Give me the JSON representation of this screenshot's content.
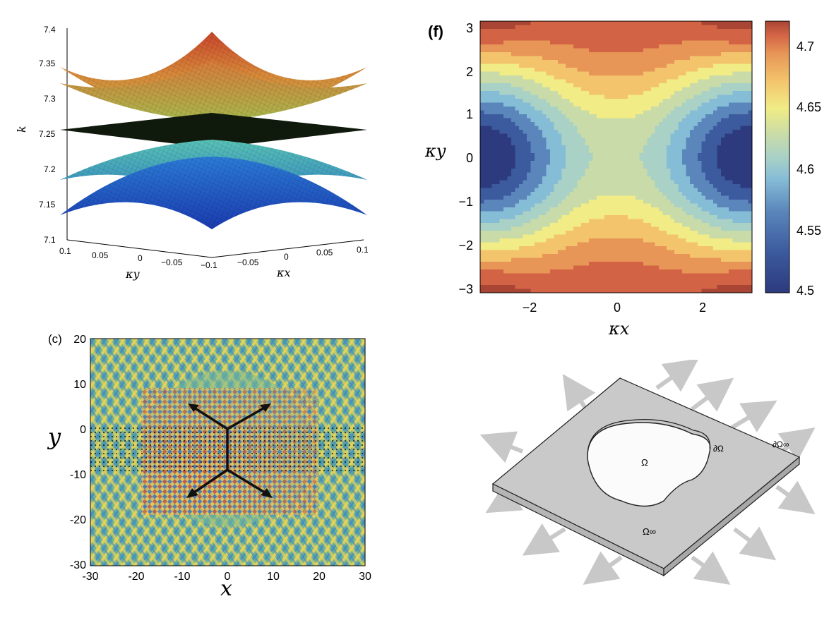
{
  "chart_data": [
    {
      "panel": "",
      "type": "surface",
      "zlabel": "k",
      "ylabel": "κy",
      "xlabel": "κx",
      "zlim": [
        7.1,
        7.4
      ],
      "z_ticks": [
        "7.1",
        "7.15",
        "7.2",
        "7.25",
        "7.3",
        "7.35",
        "7.4"
      ],
      "ky_ticks": [
        "0.1",
        "0.05",
        "0",
        "−0.05",
        "−0.1"
      ],
      "kx_ticks": [
        "−0.05",
        "0",
        "0.05",
        "0.1"
      ],
      "surfaces": [
        {
          "center_k": 7.33,
          "edge_k": 7.39,
          "colormap": "upper"
        },
        {
          "center_k": 7.3,
          "edge_k": 7.33,
          "colormap": "upper"
        },
        {
          "center_k": 7.255,
          "edge_k": 7.255,
          "colormap": "flat"
        },
        {
          "center_k": 7.21,
          "edge_k": 7.18,
          "colormap": "lower"
        },
        {
          "center_k": 7.18,
          "edge_k": 7.12,
          "colormap": "lower"
        }
      ]
    },
    {
      "panel": "(f)",
      "type": "heatmap",
      "xlabel": "κx",
      "ylabel": "κy",
      "xlim": [
        -3.14,
        3.14
      ],
      "ylim": [
        -3.14,
        3.14
      ],
      "x_ticks": [
        "−2",
        "0",
        "2"
      ],
      "y_ticks": [
        "3",
        "2",
        "1",
        "0",
        "−1",
        "−2",
        "−3"
      ],
      "colorbar_ticks": [
        "4.7",
        "4.65",
        "4.6",
        "4.55",
        "4.5"
      ],
      "colorbar_range": [
        4.49,
        4.72
      ],
      "colors": [
        "#2d3a7e",
        "#3c5a9e",
        "#5a86bb",
        "#86bdd6",
        "#a9d1c6",
        "#c8dba9",
        "#f1ec85",
        "#f3c46c",
        "#e79657",
        "#d36345",
        "#a84535"
      ]
    },
    {
      "panel": "(c)",
      "type": "heatmap",
      "xlabel": "x",
      "ylabel": "y",
      "xlim": [
        -30,
        30
      ],
      "ylim": [
        -30,
        20
      ],
      "x_ticks": [
        "-30",
        "-20",
        "-10",
        "0",
        "10",
        "20",
        "30"
      ],
      "y_ticks": [
        "20",
        "10",
        "0",
        "-10",
        "-20",
        "-30"
      ]
    }
  ],
  "diagram": {
    "omega": "Ω",
    "boundary": "∂Ω",
    "omega_inf": "Ω∞",
    "boundary_inf": "∂Ω∞"
  }
}
